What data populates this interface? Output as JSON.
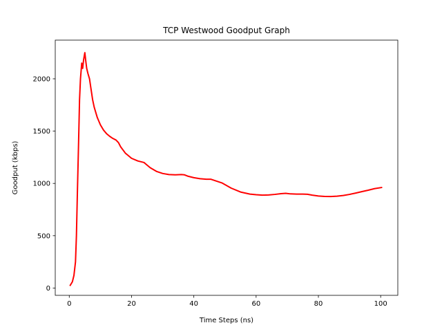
{
  "chart_data": {
    "type": "line",
    "title": "TCP Westwood Goodput Graph",
    "xlabel": "Time Steps (ns)",
    "ylabel": "Goodput (kbps)",
    "xlim": [
      -4.5,
      105.5
    ],
    "ylim": [
      -70,
      2370
    ],
    "xticks": [
      0,
      20,
      40,
      60,
      80,
      100
    ],
    "yticks": [
      0,
      500,
      1000,
      1500,
      2000
    ],
    "grid": false,
    "legend": "none",
    "series": [
      {
        "color": "#ff0000",
        "x": [
          0.2,
          1.0,
          1.5,
          2.0,
          2.3,
          2.6,
          3.0,
          3.3,
          3.6,
          4.0,
          4.3,
          4.6,
          5.0,
          5.3,
          5.6,
          6.0,
          6.5,
          7.0,
          7.5,
          8.0,
          9.0,
          10.0,
          11.0,
          12.0,
          13.0,
          14.0,
          15.0,
          15.8,
          16.5,
          18.0,
          20.0,
          22.0,
          24.0,
          24.6,
          26.0,
          28.0,
          30.0,
          32.0,
          34.0,
          36.0,
          37.0,
          38.0,
          40.0,
          42.0,
          44.0,
          45.5,
          47.0,
          49.0,
          52.0,
          55.0,
          58.0,
          60.0,
          62.0,
          64.0,
          66.0,
          68.0,
          69.5,
          71.0,
          73.0,
          75.0,
          76.5,
          78.0,
          80.0,
          82.0,
          84.0,
          86.0,
          88.0,
          90.0,
          92.0,
          94.0,
          96.0,
          98.0,
          100.5
        ],
        "y": [
          20,
          60,
          120,
          250,
          500,
          900,
          1400,
          1800,
          2000,
          2150,
          2100,
          2180,
          2250,
          2170,
          2100,
          2050,
          2000,
          1900,
          1800,
          1730,
          1630,
          1560,
          1510,
          1475,
          1450,
          1430,
          1415,
          1390,
          1350,
          1290,
          1240,
          1215,
          1200,
          1185,
          1150,
          1115,
          1095,
          1085,
          1082,
          1085,
          1082,
          1070,
          1055,
          1045,
          1040,
          1040,
          1025,
          1005,
          955,
          918,
          898,
          892,
          888,
          890,
          895,
          902,
          905,
          900,
          898,
          898,
          896,
          888,
          880,
          876,
          875,
          878,
          885,
          895,
          908,
          922,
          935,
          950,
          962
        ]
      }
    ]
  }
}
